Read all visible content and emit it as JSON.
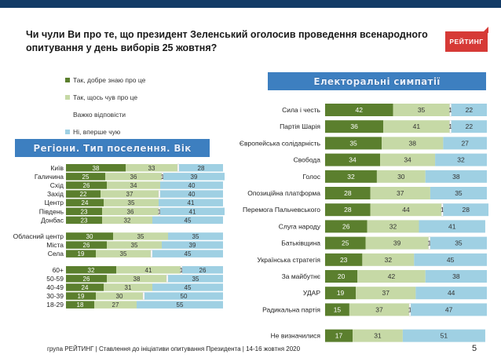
{
  "header": {
    "title": "Чи чули Ви про те, що президент Зеленський оголосив проведення  всенародного опитування у день виборів 25 жовтня?",
    "logo": "РЕЙТИНГ"
  },
  "badges": {
    "left": "Регіони. Тип поселення. Вік",
    "right": "Електоральні симпатії"
  },
  "footer": {
    "text": "група РЕЙТИНГ | Ставлення до ініціативи опитування Президента | 14-16 жовтня 2020",
    "page": "5"
  },
  "colors": {
    "s0": "#5b7f2e",
    "s1": "#c6d9a6",
    "s2": "#ffffff",
    "s3": "#9fd0e3",
    "text_dark": "#ffffff",
    "text_light": "#333333"
  },
  "chart_data": [
    {
      "type": "bar",
      "orientation": "horizontal",
      "stacked": true,
      "percent": true,
      "legend": "top-left",
      "series": [
        {
          "name": "Так, добре знаю про це"
        },
        {
          "name": "Так, щось чув про це"
        },
        {
          "name": "Важко відповісти"
        },
        {
          "name": "Ні, вперше чую"
        }
      ],
      "groups": [
        {
          "label": "",
          "rows": [
            {
              "label": "Київ",
              "values": [
                38,
                33,
                1,
                28
              ],
              "labels": [
                "38",
                "33",
                "",
                "28"
              ]
            },
            {
              "label": "Галичина",
              "values": [
                25,
                36,
                1,
                39
              ],
              "labels": [
                "25",
                "36",
                "1",
                "39"
              ]
            },
            {
              "label": "Схід",
              "values": [
                26,
                34,
                0,
                40
              ],
              "labels": [
                "26",
                "34",
                "",
                "40"
              ]
            },
            {
              "label": "Захід",
              "values": [
                22,
                37,
                1,
                40
              ],
              "labels": [
                "22",
                "37",
                "",
                "40"
              ]
            },
            {
              "label": "Центр",
              "values": [
                24,
                35,
                0,
                41
              ],
              "labels": [
                "24",
                "35",
                "",
                "41"
              ]
            },
            {
              "label": "Південь",
              "values": [
                23,
                36,
                1,
                41
              ],
              "labels": [
                "23",
                "36",
                "1",
                "41"
              ]
            },
            {
              "label": "Донбас",
              "values": [
                23,
                32,
                0,
                45
              ],
              "labels": [
                "23",
                "32",
                "",
                "45"
              ]
            }
          ]
        },
        {
          "label": "",
          "rows": [
            {
              "label": "Обласний центр",
              "values": [
                30,
                35,
                0,
                35
              ],
              "labels": [
                "30",
                "35",
                "",
                "35"
              ]
            },
            {
              "label": "Міста",
              "values": [
                26,
                35,
                0,
                39
              ],
              "labels": [
                "26",
                "35",
                "",
                "39"
              ]
            },
            {
              "label": "Села",
              "values": [
                19,
                35,
                1,
                45
              ],
              "labels": [
                "19",
                "35",
                "",
                "45"
              ]
            }
          ]
        },
        {
          "label": "",
          "rows": [
            {
              "label": "60+",
              "values": [
                32,
                41,
                1,
                26
              ],
              "labels": [
                "32",
                "41",
                "1",
                "26"
              ]
            },
            {
              "label": "50-59",
              "values": [
                26,
                38,
                1,
                35
              ],
              "labels": [
                "26",
                "38",
                "",
                "35"
              ]
            },
            {
              "label": "40-49",
              "values": [
                24,
                31,
                0,
                45
              ],
              "labels": [
                "24",
                "31",
                "",
                "45"
              ]
            },
            {
              "label": "30-39",
              "values": [
                19,
                30,
                1,
                50
              ],
              "labels": [
                "19",
                "30",
                "",
                "50"
              ]
            },
            {
              "label": "18-29",
              "values": [
                18,
                27,
                0,
                55
              ],
              "labels": [
                "18",
                "27",
                "",
                "55"
              ]
            }
          ]
        }
      ]
    },
    {
      "type": "bar",
      "orientation": "horizontal",
      "stacked": true,
      "percent": true,
      "groups": [
        {
          "label": "",
          "rows": [
            {
              "label": "Сила і честь",
              "values": [
                42,
                35,
                1,
                22
              ],
              "labels": [
                "42",
                "35",
                "1",
                "22"
              ]
            },
            {
              "label": "Партія Шарія",
              "values": [
                36,
                41,
                1,
                22
              ],
              "labels": [
                "36",
                "41",
                "1",
                "22"
              ]
            },
            {
              "label": "Європейська солідарність",
              "values": [
                35,
                38,
                0,
                27
              ],
              "labels": [
                "35",
                "38",
                "",
                "27"
              ]
            },
            {
              "label": "Свобода",
              "values": [
                34,
                34,
                0,
                32
              ],
              "labels": [
                "34",
                "34",
                "",
                "32"
              ]
            },
            {
              "label": "Голос",
              "values": [
                32,
                30,
                0,
                38
              ],
              "labels": [
                "32",
                "30",
                "",
                "38"
              ]
            },
            {
              "label": "Опозиційна платформа",
              "values": [
                28,
                37,
                0,
                35
              ],
              "labels": [
                "28",
                "37",
                "",
                "35"
              ]
            },
            {
              "label": "Перемога Пальчевського",
              "values": [
                28,
                44,
                1,
                28
              ],
              "labels": [
                "28",
                "44",
                "1",
                "28"
              ]
            },
            {
              "label": "Слуга народу",
              "values": [
                26,
                32,
                0,
                41
              ],
              "labels": [
                "26",
                "32",
                "",
                "41"
              ]
            },
            {
              "label": "Батьківщина",
              "values": [
                25,
                39,
                1,
                35
              ],
              "labels": [
                "25",
                "39",
                "1",
                "35"
              ]
            },
            {
              "label": "Українська стратегія",
              "values": [
                23,
                32,
                0,
                45
              ],
              "labels": [
                "23",
                "32",
                "",
                "45"
              ]
            },
            {
              "label": "За майбутнє",
              "values": [
                20,
                42,
                0,
                38
              ],
              "labels": [
                "20",
                "42",
                "",
                "38"
              ]
            },
            {
              "label": "УДАР",
              "values": [
                19,
                37,
                0,
                44
              ],
              "labels": [
                "19",
                "37",
                "",
                "44"
              ]
            },
            {
              "label": "Радикальна партія",
              "values": [
                15,
                37,
                1,
                47
              ],
              "labels": [
                "15",
                "37",
                "1",
                "47"
              ]
            }
          ]
        },
        {
          "label": "",
          "rows": [
            {
              "label": "Не визначилися",
              "values": [
                17,
                31,
                0,
                51
              ],
              "labels": [
                "17",
                "31",
                "",
                "51"
              ]
            }
          ]
        }
      ]
    }
  ]
}
